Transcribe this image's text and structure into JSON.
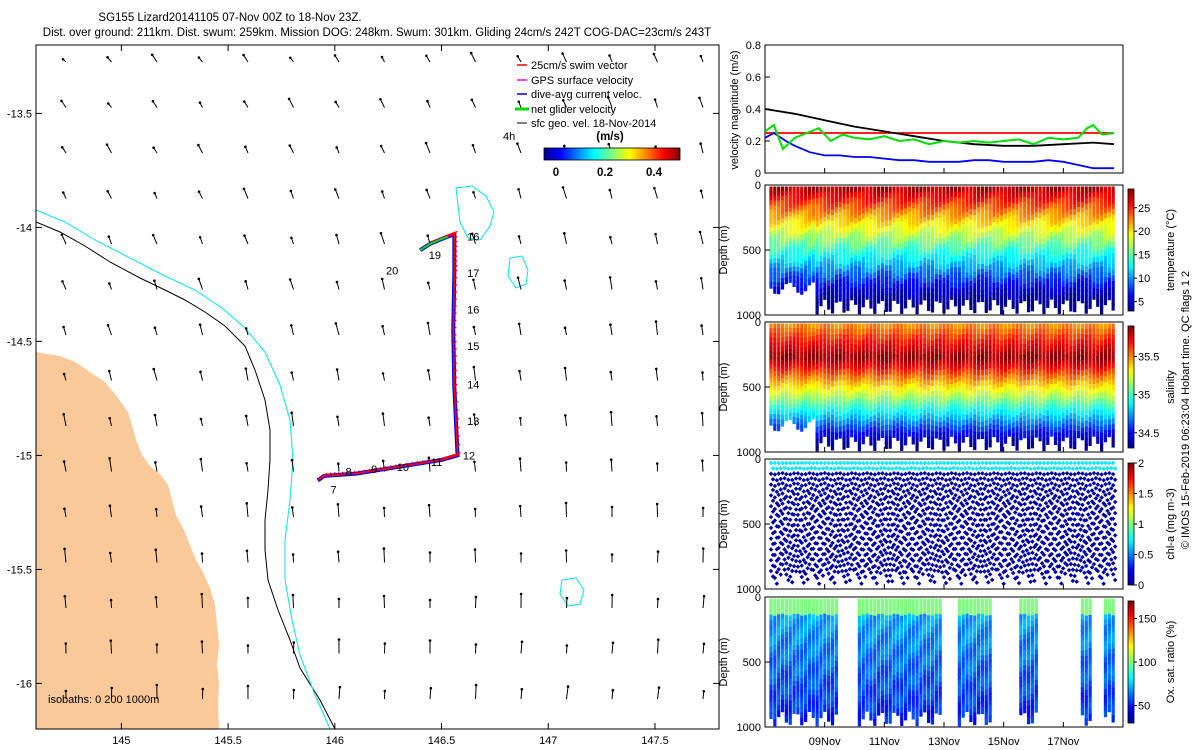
{
  "header": {
    "line1": "SG155 Lizard20141105 07-Nov 00Z to 18-Nov 23Z.",
    "line2": "Dist. over ground: 211km. Dist. swum: 259km. Mission DOG: 248km. Swum: 301km. Gliding 24cm/s 242T COG-DAC=23cm/s 243T"
  },
  "credit": "© IMOS 15-Feb-2019 06:23:04 Hobart time. QC flags 1  2",
  "colors": {
    "land": "#f9c999",
    "isobath_200": "#000000",
    "isobath_1000": "#00e5ee",
    "swim": "#ff0000",
    "gps": "#ff00ff",
    "dac": "#0000ff",
    "net": "#00dd00",
    "sfc": "#000000"
  },
  "map": {
    "xlim": [
      144.6,
      147.8
    ],
    "ylim": [
      -16.2,
      -13.2
    ],
    "xticks": [
      "145",
      "145.5",
      "146",
      "146.5",
      "147",
      "147.5"
    ],
    "yticks": [
      "-13.5",
      "-14",
      "-14.5",
      "-15",
      "-15.5",
      "-16"
    ],
    "legend": [
      {
        "key": "swim",
        "label": "25cm/s swim vector"
      },
      {
        "key": "gps",
        "label": "GPS surface velocity"
      },
      {
        "key": "dac",
        "label": "dive-avg current veloc."
      },
      {
        "key": "net",
        "label": "net glider velocity"
      },
      {
        "key": "sfc",
        "label": "sfc geo. vel. 18-Nov-2014"
      }
    ],
    "legend_4h": "4h",
    "colorbar": {
      "title": "(m/s)",
      "ticks": [
        "0",
        "0.2",
        "0.4"
      ],
      "range": [
        0,
        0.5
      ]
    },
    "isobaths_label": "isobaths: 0   200  1000m",
    "track": [
      [
        146.4,
        -14.1
      ],
      [
        146.45,
        -14.07
      ],
      [
        146.53,
        -14.04
      ],
      [
        146.56,
        -14.03
      ],
      [
        146.56,
        -14.2
      ],
      [
        146.555,
        -14.45
      ],
      [
        146.56,
        -14.7
      ],
      [
        146.575,
        -15.0
      ],
      [
        146.5,
        -15.02
      ],
      [
        146.3,
        -15.05
      ],
      [
        146.1,
        -15.08
      ],
      [
        145.95,
        -15.09
      ],
      [
        145.92,
        -15.11
      ]
    ],
    "day_labels": [
      {
        "text": "16",
        "lon": 146.62,
        "lat": -14.04
      },
      {
        "text": "17",
        "lon": 146.62,
        "lat": -14.2
      },
      {
        "text": "16",
        "lon": 146.62,
        "lat": -14.36
      },
      {
        "text": "15",
        "lon": 146.62,
        "lat": -14.52
      },
      {
        "text": "14",
        "lon": 146.62,
        "lat": -14.69
      },
      {
        "text": "13",
        "lon": 146.62,
        "lat": -14.85
      },
      {
        "text": "12",
        "lon": 146.6,
        "lat": -15.0
      },
      {
        "text": "11",
        "lon": 146.45,
        "lat": -15.03
      },
      {
        "text": "10",
        "lon": 146.29,
        "lat": -15.05
      },
      {
        "text": "9",
        "lon": 146.17,
        "lat": -15.06
      },
      {
        "text": "8",
        "lon": 146.05,
        "lat": -15.07
      },
      {
        "text": "7",
        "lon": 145.98,
        "lat": -15.15
      },
      {
        "text": "19",
        "lon": 146.44,
        "lat": -14.12
      },
      {
        "text": "20",
        "lon": 146.24,
        "lat": -14.19
      }
    ]
  },
  "timeseries": {
    "time_range": [
      7.0,
      19.0
    ],
    "xticks": [
      {
        "t": 9,
        "label": "09Nov"
      },
      {
        "t": 11,
        "label": "11Nov"
      },
      {
        "t": 13,
        "label": "13Nov"
      },
      {
        "t": 15,
        "label": "15Nov"
      },
      {
        "t": 17,
        "label": "17Nov"
      }
    ]
  },
  "velocity_panel": {
    "ylabel": "velocity magnitude (m/s)",
    "ylim": [
      0,
      0.8
    ],
    "yticks": [
      "0",
      "0.2",
      "0.4",
      "0.6",
      "0.8"
    ],
    "series": [
      {
        "name": "swim",
        "color": "#ff0000",
        "points": [
          [
            7,
            0.25
          ],
          [
            18.7,
            0.25
          ]
        ]
      },
      {
        "name": "sfc geostrophic",
        "color": "#000000",
        "points": [
          [
            7,
            0.4
          ],
          [
            8,
            0.37
          ],
          [
            9,
            0.33
          ],
          [
            10,
            0.29
          ],
          [
            11,
            0.26
          ],
          [
            12,
            0.23
          ],
          [
            13,
            0.2
          ],
          [
            14,
            0.18
          ],
          [
            15,
            0.17
          ],
          [
            16,
            0.17
          ],
          [
            17,
            0.18
          ],
          [
            18,
            0.19
          ],
          [
            18.7,
            0.18
          ]
        ]
      },
      {
        "name": "dive-avg current",
        "color": "#0000ff",
        "points": [
          [
            7,
            0.22
          ],
          [
            7.3,
            0.25
          ],
          [
            7.7,
            0.2
          ],
          [
            8,
            0.17
          ],
          [
            8.5,
            0.13
          ],
          [
            9,
            0.11
          ],
          [
            9.5,
            0.11
          ],
          [
            10,
            0.1
          ],
          [
            10.5,
            0.1
          ],
          [
            11,
            0.09
          ],
          [
            11.5,
            0.08
          ],
          [
            12,
            0.08
          ],
          [
            12.5,
            0.07
          ],
          [
            13,
            0.07
          ],
          [
            13.5,
            0.07
          ],
          [
            14,
            0.08
          ],
          [
            14.5,
            0.08
          ],
          [
            15,
            0.07
          ],
          [
            15.5,
            0.07
          ],
          [
            16,
            0.07
          ],
          [
            16.5,
            0.08
          ],
          [
            17,
            0.07
          ],
          [
            17.5,
            0.05
          ],
          [
            18,
            0.03
          ],
          [
            18.7,
            0.03
          ]
        ]
      },
      {
        "name": "net glider",
        "color": "#00dd00",
        "points": [
          [
            7,
            0.26
          ],
          [
            7.3,
            0.3
          ],
          [
            7.6,
            0.15
          ],
          [
            8,
            0.22
          ],
          [
            8.4,
            0.25
          ],
          [
            8.8,
            0.28
          ],
          [
            9.2,
            0.2
          ],
          [
            9.6,
            0.24
          ],
          [
            10,
            0.22
          ],
          [
            10.5,
            0.21
          ],
          [
            11,
            0.23
          ],
          [
            11.5,
            0.2
          ],
          [
            12,
            0.21
          ],
          [
            12.5,
            0.18
          ],
          [
            13,
            0.2
          ],
          [
            13.5,
            0.19
          ],
          [
            14,
            0.2
          ],
          [
            14.5,
            0.19
          ],
          [
            15,
            0.2
          ],
          [
            15.5,
            0.21
          ],
          [
            16,
            0.18
          ],
          [
            16.5,
            0.22
          ],
          [
            17,
            0.21
          ],
          [
            17.5,
            0.22
          ],
          [
            17.8,
            0.28
          ],
          [
            18,
            0.3
          ],
          [
            18.3,
            0.24
          ],
          [
            18.7,
            0.25
          ]
        ]
      }
    ]
  },
  "profile_panels": [
    {
      "name": "temperature",
      "ylabel": "Depth (m)",
      "cblabel": "temperature (°C)",
      "yticks": [
        "0",
        "500",
        "1000"
      ],
      "cbticks": [
        "5",
        "10",
        "15",
        "20",
        "25"
      ],
      "cbrange": [
        3,
        29
      ]
    },
    {
      "name": "salinity",
      "ylabel": "Depth (m)",
      "cblabel": "salinity",
      "yticks": [
        "0",
        "500",
        "1000"
      ],
      "cbticks": [
        "34.5",
        "35",
        "35.5"
      ],
      "cbrange": [
        34.3,
        35.9
      ]
    },
    {
      "name": "chl-a",
      "ylabel": "Depth (m)",
      "cblabel": "chl-a (mg m-3)",
      "yticks": [
        "0",
        "500",
        "1000"
      ],
      "cbticks": [
        "0",
        "0.5",
        "1",
        "1.5",
        "2"
      ],
      "cbrange": [
        0,
        2
      ]
    },
    {
      "name": "oxygen",
      "ylabel": "Depth (m)",
      "cblabel": "Ox. sat. ratio (%)",
      "yticks": [
        "0",
        "500",
        "1000"
      ],
      "cbticks": [
        "50",
        "100",
        "150"
      ],
      "cbrange": [
        30,
        170
      ]
    }
  ]
}
